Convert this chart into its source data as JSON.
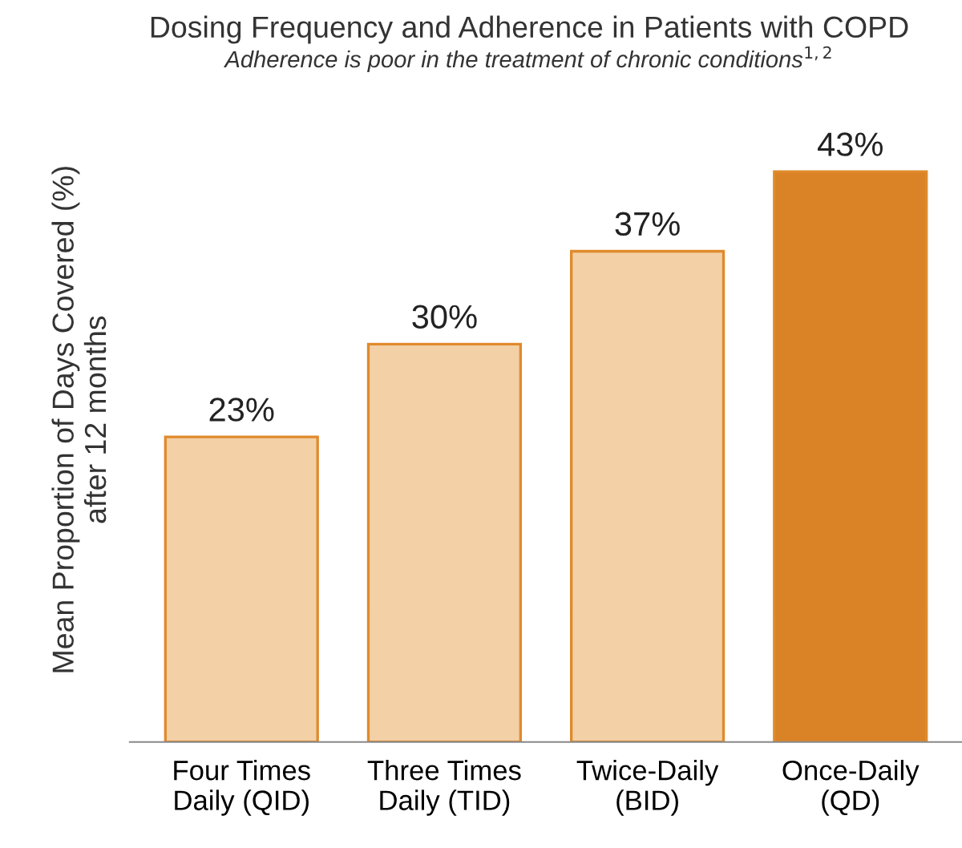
{
  "chart_data": {
    "type": "bar",
    "title": "Dosing Frequency and Adherence in Patients with COPD",
    "subtitle": "Adherence is poor in the treatment of chronic conditions$^{1,2}$",
    "ylabel": "Mean Proportion of Days Covered (%)\nafter 12 months",
    "categories": [
      "Four Times\nDaily (QID)",
      "Three Times\nDaily (TID)",
      "Twice-Daily\n(BID)",
      "Once-Daily\n(QD)"
    ],
    "values": [
      23,
      30,
      37,
      43
    ],
    "colors": [
      "#f3d0a6",
      "#f3d0a6",
      "#f3d0a6",
      "#d98226"
    ],
    "value_labels": [
      "23%",
      "30%",
      "37%",
      "43%"
    ]
  }
}
